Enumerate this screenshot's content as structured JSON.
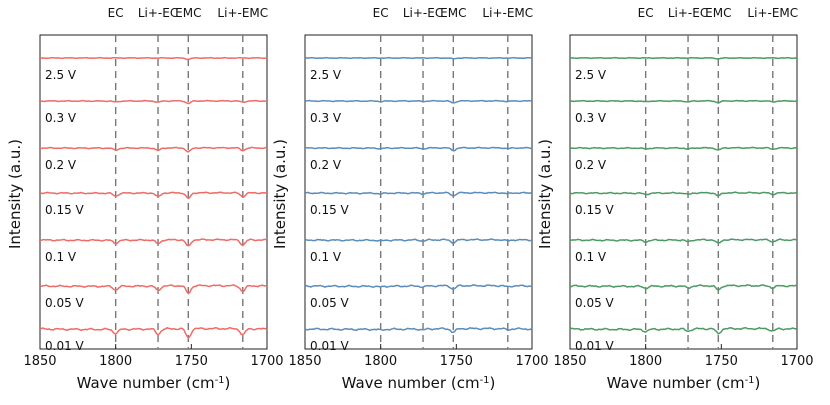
{
  "chart_data": [
    {
      "type": "line",
      "xlabel": "Wave number (cm",
      "xlabel_sup": "-1",
      "xlabel_close": ")",
      "ylabel": "Intensity (a.u.)",
      "xlim": [
        1850,
        1700
      ],
      "x_ticks": [
        "1850",
        "1800",
        "1750",
        "1700"
      ],
      "x_tick_values": [
        1850,
        1800,
        1750,
        1700
      ],
      "grid": false,
      "line_color": "#ef6b66",
      "markers": [
        {
          "x": 1800,
          "label": "EC"
        },
        {
          "x": 1772,
          "label": "Li+-EC"
        },
        {
          "x": 1752,
          "label": "EMC"
        },
        {
          "x": 1716,
          "label": "Li+-EMC"
        }
      ],
      "series": [
        {
          "label": "2.5 V",
          "dips": [
            0.0,
            0.0,
            0.5,
            0.0
          ]
        },
        {
          "label": "0.3 V",
          "dips": [
            0.4,
            0.5,
            1.0,
            0.5
          ]
        },
        {
          "label": "0.2 V",
          "dips": [
            0.8,
            1.0,
            1.6,
            1.0
          ]
        },
        {
          "label": "0.15 V",
          "dips": [
            1.2,
            1.5,
            2.2,
            1.5
          ]
        },
        {
          "label": "0.1 V",
          "dips": [
            1.2,
            1.5,
            2.6,
            2.0
          ]
        },
        {
          "label": "0.05 V",
          "dips": [
            1.4,
            1.7,
            3.0,
            2.2
          ]
        },
        {
          "label": "0.01 V",
          "dips": [
            1.6,
            2.0,
            3.6,
            2.4
          ]
        }
      ]
    },
    {
      "type": "line",
      "xlabel": "Wave number (cm",
      "xlabel_sup": "-1",
      "xlabel_close": ")",
      "ylabel": "Intensity (a.u.)",
      "xlim": [
        1850,
        1700
      ],
      "x_ticks": [
        "1850",
        "1800",
        "1750",
        "1700"
      ],
      "x_tick_values": [
        1850,
        1800,
        1750,
        1700
      ],
      "grid": false,
      "line_color": "#5a8dbb",
      "markers": [
        {
          "x": 1800,
          "label": "EC"
        },
        {
          "x": 1772,
          "label": "Li+-EC"
        },
        {
          "x": 1752,
          "label": "EMC"
        },
        {
          "x": 1716,
          "label": "Li+-EMC"
        }
      ],
      "series": [
        {
          "label": "2.5 V",
          "dips": [
            0.0,
            0.0,
            0.3,
            0.0
          ]
        },
        {
          "label": "0.3 V",
          "dips": [
            0.2,
            0.2,
            0.8,
            0.2
          ]
        },
        {
          "label": "0.2 V",
          "dips": [
            0.2,
            0.3,
            1.0,
            0.3
          ]
        },
        {
          "label": "0.15 V",
          "dips": [
            0.3,
            0.3,
            1.1,
            0.3
          ]
        },
        {
          "label": "0.1 V",
          "dips": [
            0.3,
            0.4,
            1.2,
            0.4
          ]
        },
        {
          "label": "0.05 V",
          "dips": [
            0.3,
            0.4,
            1.3,
            0.4
          ]
        },
        {
          "label": "0.01 V",
          "dips": [
            0.3,
            0.4,
            1.4,
            0.4
          ]
        }
      ]
    },
    {
      "type": "line",
      "xlabel": "Wave number (cm",
      "xlabel_sup": "-1",
      "xlabel_close": ")",
      "ylabel": "Intensity (a.u.)",
      "xlim": [
        1850,
        1700
      ],
      "x_ticks": [
        "1850",
        "1800",
        "1750",
        "1700"
      ],
      "x_tick_values": [
        1850,
        1800,
        1750,
        1700
      ],
      "grid": false,
      "line_color": "#4c9a64",
      "markers": [
        {
          "x": 1800,
          "label": "EC"
        },
        {
          "x": 1772,
          "label": "Li+-EC"
        },
        {
          "x": 1752,
          "label": "EMC"
        },
        {
          "x": 1716,
          "label": "Li+-EMC"
        }
      ],
      "series": [
        {
          "label": "2.5 V",
          "dips": [
            0.0,
            0.0,
            0.3,
            0.0
          ]
        },
        {
          "label": "0.3 V",
          "dips": [
            0.3,
            0.4,
            0.7,
            0.4
          ]
        },
        {
          "label": "0.2 V",
          "dips": [
            0.4,
            0.5,
            0.9,
            0.5
          ]
        },
        {
          "label": "0.15 V",
          "dips": [
            0.5,
            0.6,
            1.2,
            0.6
          ]
        },
        {
          "label": "0.1 V",
          "dips": [
            0.6,
            0.7,
            1.4,
            0.7
          ]
        },
        {
          "label": "0.05 V",
          "dips": [
            0.7,
            0.8,
            1.7,
            0.8
          ]
        },
        {
          "label": "0.01 V",
          "dips": [
            0.8,
            0.9,
            1.9,
            0.9
          ]
        }
      ]
    }
  ]
}
